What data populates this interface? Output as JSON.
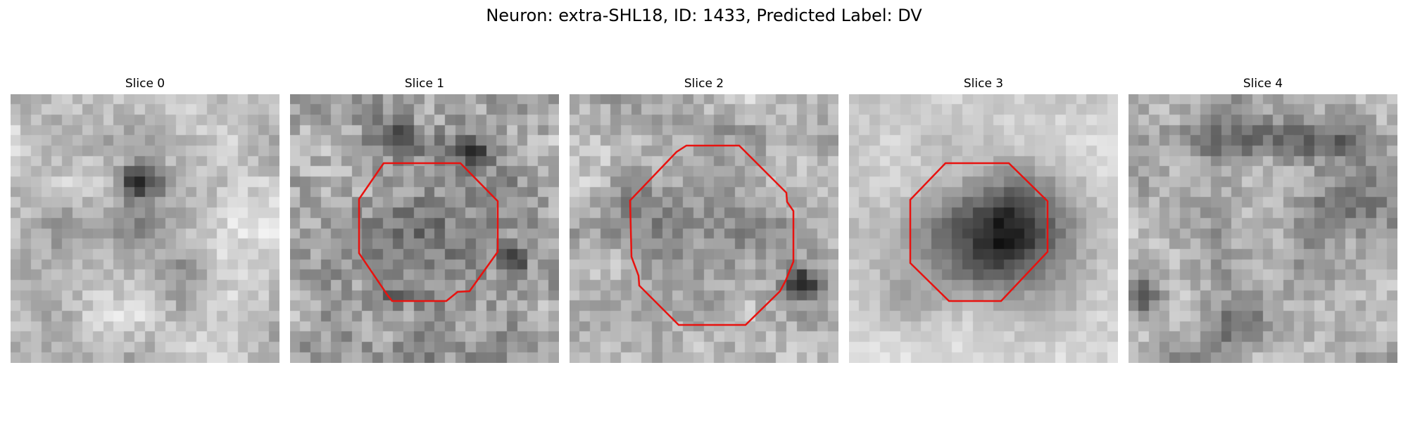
{
  "figure": {
    "title": "Neuron: extra-SHL18, ID: 1433, Predicted Label: DV"
  },
  "colors": {
    "background": "#ffffff",
    "contour": "#e8120f",
    "colormap": "grayscale"
  },
  "panels": [
    {
      "title": "Slice 0",
      "has_contour": false
    },
    {
      "title": "Slice 1",
      "has_contour": true
    },
    {
      "title": "Slice 2",
      "has_contour": true
    },
    {
      "title": "Slice 3",
      "has_contour": true
    },
    {
      "title": "Slice 4",
      "has_contour": false
    }
  ]
}
